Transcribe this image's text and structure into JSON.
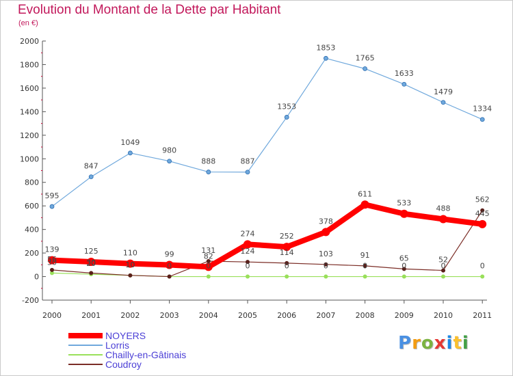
{
  "title": "Evolution du Montant de la Dette par Habitant",
  "subtitle": "(en €)",
  "chart_data": {
    "type": "line",
    "title": "Evolution du Montant de la Dette par Habitant",
    "subtitle": "(en €)",
    "xlabel": "",
    "ylabel": "",
    "x": [
      "2000",
      "2001",
      "2002",
      "2003",
      "2004",
      "2005",
      "2006",
      "2007",
      "2008",
      "2009",
      "2010",
      "2011"
    ],
    "ylim": [
      -200,
      2000
    ],
    "yticks": [
      "-200",
      "0",
      "200",
      "400",
      "600",
      "800",
      "1000",
      "1200",
      "1400",
      "1600",
      "1800",
      "2000"
    ],
    "grid": false,
    "legend_position": "bottom-left",
    "series": [
      {
        "name": "NOYERS",
        "color": "#ff0000",
        "values": [
          139,
          125,
          110,
          99,
          82,
          274,
          252,
          378,
          611,
          533,
          488,
          445
        ],
        "labels": [
          "139",
          "125",
          "110",
          "99",
          "82",
          "274",
          "252",
          "378",
          "611",
          "533",
          "488",
          "445"
        ]
      },
      {
        "name": "Lorris",
        "color": "#6fa8dc",
        "values": [
          595,
          847,
          1049,
          980,
          888,
          887,
          1353,
          1853,
          1765,
          1633,
          1479,
          1334
        ],
        "labels": [
          "595",
          "847",
          "1049",
          "980",
          "888",
          "887",
          "1353",
          "1853",
          "1765",
          "1633",
          "1479",
          "1334"
        ]
      },
      {
        "name": "Chailly-en-Gâtinais",
        "color": "#99e05a",
        "values": [
          30,
          20,
          10,
          0,
          0,
          0,
          0,
          0,
          0,
          0,
          0,
          0
        ],
        "labels": [
          "30",
          "20",
          "10",
          "0",
          "0",
          "0",
          "0",
          "0",
          "0",
          "0",
          "0",
          "0"
        ]
      },
      {
        "name": "Coudroy",
        "color": "#7b2d26",
        "values": [
          56,
          30,
          10,
          0,
          131,
          124,
          114,
          103,
          91,
          65,
          52,
          562
        ],
        "labels": [
          "56",
          "30",
          "10",
          "",
          "131",
          "124",
          "114",
          "103",
          "91",
          "65",
          "52",
          "562"
        ]
      }
    ]
  },
  "logo": {
    "letters": [
      "P",
      "r",
      "o",
      "x",
      "i",
      "t",
      "i"
    ],
    "colors": [
      "#4a90e2",
      "#f39c12",
      "#7cb342",
      "#e53935",
      "#1e88e5",
      "#fbc02d",
      "#43a047"
    ]
  }
}
